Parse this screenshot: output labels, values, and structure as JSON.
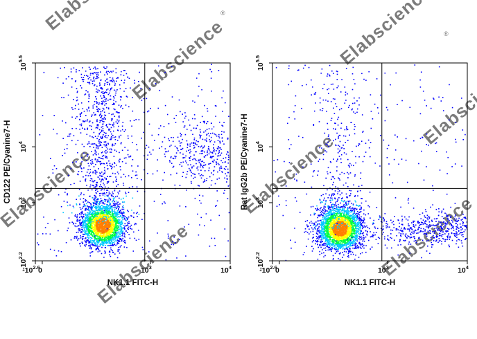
{
  "watermark": "Elabscience",
  "watermark_mark": "®",
  "chart_data": [
    {
      "type": "scatter",
      "subtype": "flow-cytometry-density-dot-plot",
      "xlabel": "NK1.1 FITC-H",
      "ylabel": "CD122 PE/Cyanine7-H",
      "x_scale": "biexponential",
      "y_scale": "biexponential",
      "xlim": [
        -398,
        10000
      ],
      "ylim": [
        -158,
        316228
      ],
      "x_ticks": [
        {
          "base": "-10",
          "exp": "2.6",
          "value": -398
        },
        {
          "base": "0",
          "exp": "",
          "value": 0
        },
        {
          "base": "10",
          "exp": "3",
          "value": 1000
        },
        {
          "base": "10",
          "exp": "4",
          "value": 10000
        }
      ],
      "y_ticks": [
        {
          "base": "-10",
          "exp": "2.2",
          "value": -158
        },
        {
          "base": "10",
          "exp": "3",
          "value": 1000
        },
        {
          "base": "10",
          "exp": "4",
          "value": 10000
        },
        {
          "base": "10",
          "exp": "5.5",
          "value": 316228
        }
      ],
      "quadrant_gate": {
        "x": 850,
        "y": 1800
      },
      "populations": [
        {
          "name": "",
          "x_center": 250,
          "y_center": 400,
          "relative_size": 0.62,
          "shape": "dense core, tail upward to 10^4"
        },
        {
          "name": "",
          "x_center": 5000,
          "y_center": 8000,
          "relative_size": 0.12,
          "shape": "diffuse cloud"
        }
      ],
      "grid": false,
      "color_map": [
        "#0000ff",
        "#00c8ff",
        "#00ff40",
        "#ffff00",
        "#ff7f00",
        "#ff0000"
      ]
    },
    {
      "type": "scatter",
      "subtype": "flow-cytometry-density-dot-plot",
      "xlabel": "NK1.1 FITC-H",
      "ylabel": "Rat IgG2b PE/Cyanine7-H",
      "x_scale": "biexponential",
      "y_scale": "biexponential",
      "xlim": [
        -398,
        10000
      ],
      "ylim": [
        -158,
        316228
      ],
      "x_ticks": [
        {
          "base": "-10",
          "exp": "2.6",
          "value": -398
        },
        {
          "base": "0",
          "exp": "",
          "value": 0
        },
        {
          "base": "10",
          "exp": "3",
          "value": 1000
        },
        {
          "base": "10",
          "exp": "4",
          "value": 10000
        }
      ],
      "y_ticks": [
        {
          "base": "-10",
          "exp": "2.2",
          "value": -158
        },
        {
          "base": "10",
          "exp": "3",
          "value": 1000
        },
        {
          "base": "10",
          "exp": "4",
          "value": 10000
        },
        {
          "base": "10",
          "exp": "5.5",
          "value": 316228
        }
      ],
      "quadrant_gate": {
        "x": 850,
        "y": 1800
      },
      "populations": [
        {
          "name": "",
          "x_center": 250,
          "y_center": 350,
          "relative_size": 0.68,
          "shape": "dense core, sparse tail upward"
        },
        {
          "name": "",
          "x_center": 4000,
          "y_center": 350,
          "relative_size": 0.14,
          "shape": "horizontal band"
        }
      ],
      "grid": false,
      "color_map": [
        "#0000ff",
        "#00c8ff",
        "#00ff40",
        "#ffff00",
        "#ff7f00",
        "#ff0000"
      ]
    }
  ]
}
